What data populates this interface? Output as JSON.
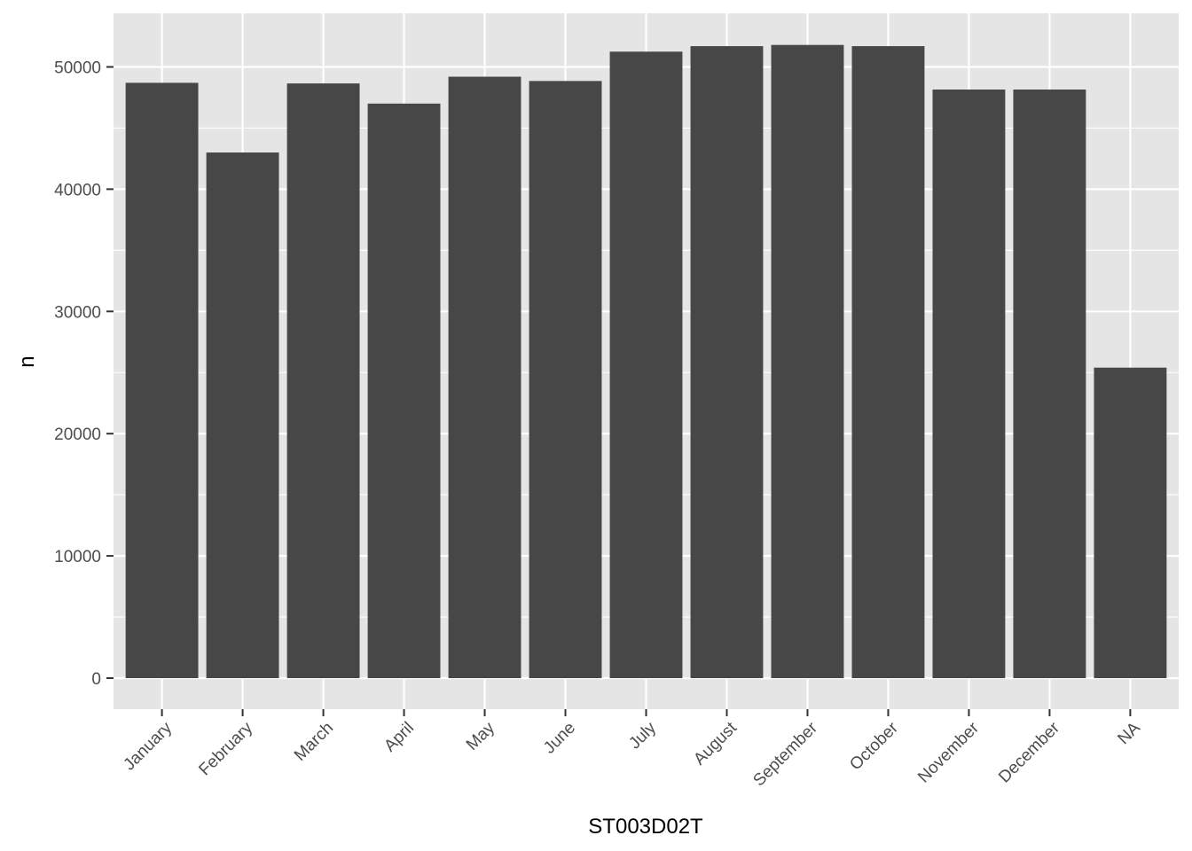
{
  "chart_data": {
    "type": "bar",
    "title": "",
    "xlabel": "ST003D02T",
    "ylabel": "n",
    "categories": [
      "January",
      "February",
      "March",
      "April",
      "May",
      "June",
      "July",
      "August",
      "September",
      "October",
      "November",
      "December",
      "NA"
    ],
    "values": [
      48700,
      43000,
      48650,
      47000,
      49200,
      48850,
      51250,
      51700,
      51800,
      51700,
      48150,
      48150,
      25400
    ],
    "ylim": [
      0,
      54300
    ],
    "yticks": [
      0,
      10000,
      20000,
      30000,
      40000,
      50000
    ],
    "ytick_labels": [
      "0",
      "10000",
      "20000",
      "30000",
      "40000",
      "50000"
    ],
    "grid": true,
    "legend": "none",
    "colors": {
      "bar": "#474747",
      "panel": "#e5e5e5",
      "grid": "#ffffff",
      "tick_text": "#4d4d4d"
    }
  }
}
